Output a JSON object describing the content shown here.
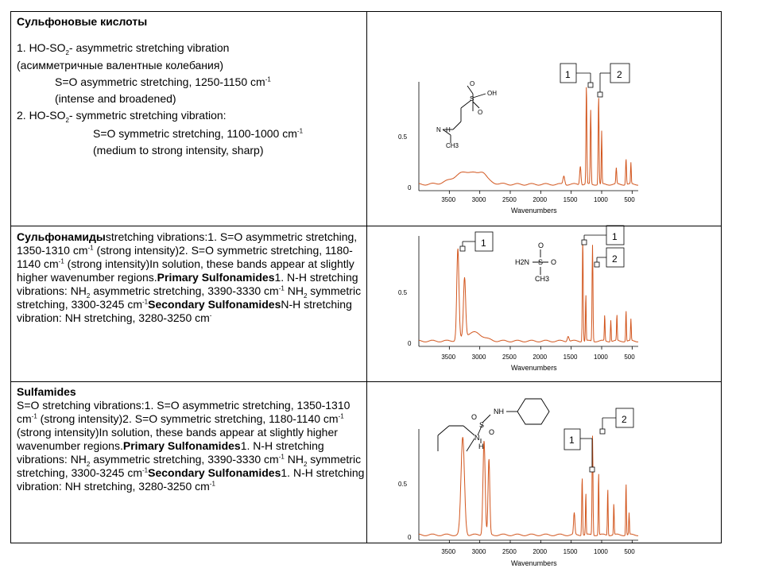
{
  "sections": {
    "sulfonic": {
      "title": "Сульфоновые кислоты",
      "item1_prefix": "1.  HO-SO",
      "item1_sub": "2",
      "item1_suffix": "- asymmetric stretching vibration",
      "item1_ru": "(асимметричные валентные колебания)",
      "item1_detail": "S=O asymmetric stretching, 1250-1150 cm",
      "item1_detail_sup": "-1",
      "item1_note": "(intense and broadened)",
      "item2_prefix": "2.  HO-SO",
      "item2_sub": "2",
      "item2_suffix": "- symmetric stretching vibration:",
      "item2_detail": "S=O symmetric stretching, 1100-1000 cm",
      "item2_detail_sup": "-1",
      "item2_note": "(medium to strong intensity, sharp)"
    },
    "sulfonamides": {
      "title": "Сульфонамиды",
      "t1": "stretching vibrations:1.  S=O asymmetric stretching, 1350-1310 cm",
      "s1": "-1",
      "t2": " (strong intensity)2.  S=O symmetric stretching, 1180-1140 cm",
      "s2": "-1",
      "t3": "    (strong intensity)In solution, these bands appear at slightly higher wavenumber regions.",
      "b1": "Primary Sulfonamides",
      "t4": "1.  N-H stretching vibrations: NH",
      "sub1": "2",
      "t5": " asymmetric stretching, 3390-3330 cm",
      "s3": "-1",
      "t6": "      NH",
      "sub2": "2",
      "t7": " symmetric stretching, 3300-3245 cm",
      "s4": "-1",
      "b2": "Secondary Sulfonamides",
      "t8": "N-H stretching vibration:  NH stretching, 3280-3250 cm",
      "s5": "-"
    },
    "sulfamides": {
      "title": "Sulfamides",
      "t1": "S=O stretching vibrations:1.  S=O asymmetric stretching, 1350-1310 cm",
      "s1": "-1",
      "t2": "        (strong intensity)2.  S=O symmetric stretching, 1180-1140 cm",
      "s2": "-1",
      "t3": "  (strong intensity)In solution, these bands appear at slightly higher wavenumber regions.",
      "b1": "Primary Sulfonamides",
      "t4": "1.  N-H stretching vibrations:        NH",
      "sub1": "2",
      "t5": " asymmetric stretching, 3390-3330 cm",
      "s3": "-1",
      "t6": "      NH",
      "sub2": "2",
      "t7": " symmetric stretching, 3300-3245 cm",
      "s4": "-1",
      "b2": "Secondary Sulfonamides",
      "t8": "1.  N-H stretching vibration:        NH stretching, 3280-3250 cm",
      "s5": "-1"
    }
  },
  "spectra": [
    {
      "xlabel": "Wavenumbers",
      "xticks": [
        "3500",
        "3000",
        "2500",
        "2000",
        "1500",
        "1000",
        "500"
      ],
      "yticks": [
        "0.5",
        "0"
      ],
      "peak_labels": [
        "1",
        "2"
      ],
      "molecule_labels": [
        "S",
        "O",
        "OH",
        "O",
        "N",
        "H",
        "CH3"
      ],
      "line_color": "#d2561e"
    },
    {
      "xlabel": "Wavenumbers",
      "xticks": [
        "3500",
        "3000",
        "2500",
        "2000",
        "1500",
        "1000",
        "500"
      ],
      "yticks": [
        "0.5",
        "0"
      ],
      "peak_labels": [
        "1",
        "2"
      ],
      "molecule_labels": [
        "O",
        "H2N",
        "S",
        "O",
        "CH3"
      ],
      "line_color": "#d2561e"
    },
    {
      "xlabel": "Wavenumbers",
      "xticks": [
        "3500",
        "3000",
        "2500",
        "2000",
        "1500",
        "1000",
        "500"
      ],
      "yticks": [
        "0.5",
        "0"
      ],
      "peak_labels": [
        "1",
        "2"
      ],
      "molecule_labels": [
        "NH",
        "O",
        "S",
        "O",
        "N",
        "H"
      ],
      "line_color": "#d2561e"
    }
  ]
}
